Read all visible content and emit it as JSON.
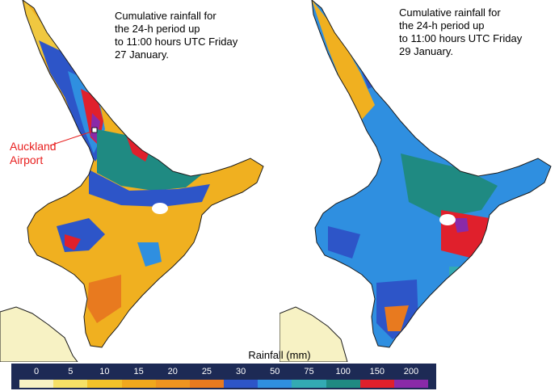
{
  "left_map": {
    "caption": [
      "Cumulative rainfall for",
      "the 24-h period up",
      "to 11:00 hours UTC Friday",
      "27 January."
    ],
    "annotation_lines": [
      "Auckland",
      "Airport"
    ]
  },
  "right_map": {
    "caption": [
      "Cumulative rainfall for",
      "the 24-h period up",
      "to 11:00 hours UTC Friday",
      "29 January."
    ]
  },
  "legend": {
    "title": "Rainfall (mm)",
    "classes": [
      {
        "label": "0",
        "color": "#f7f2c4"
      },
      {
        "label": "5",
        "color": "#f5e066"
      },
      {
        "label": "10",
        "color": "#f2c22a"
      },
      {
        "label": "15",
        "color": "#f0a81d"
      },
      {
        "label": "20",
        "color": "#ee9420"
      },
      {
        "label": "25",
        "color": "#e87a1f"
      },
      {
        "label": "30",
        "color": "#2d55c8"
      },
      {
        "label": "50",
        "color": "#2f8fe0"
      },
      {
        "label": "75",
        "color": "#33aab3"
      },
      {
        "label": "100",
        "color": "#1f8a82"
      },
      {
        "label": "150",
        "color": "#e0202c"
      },
      {
        "label": "200",
        "color": "#8a2aa8"
      }
    ]
  },
  "colors": {
    "annotation": "#e8201f",
    "legend_bar": "#1d2a55",
    "land_outline": "#1a1a1a"
  }
}
